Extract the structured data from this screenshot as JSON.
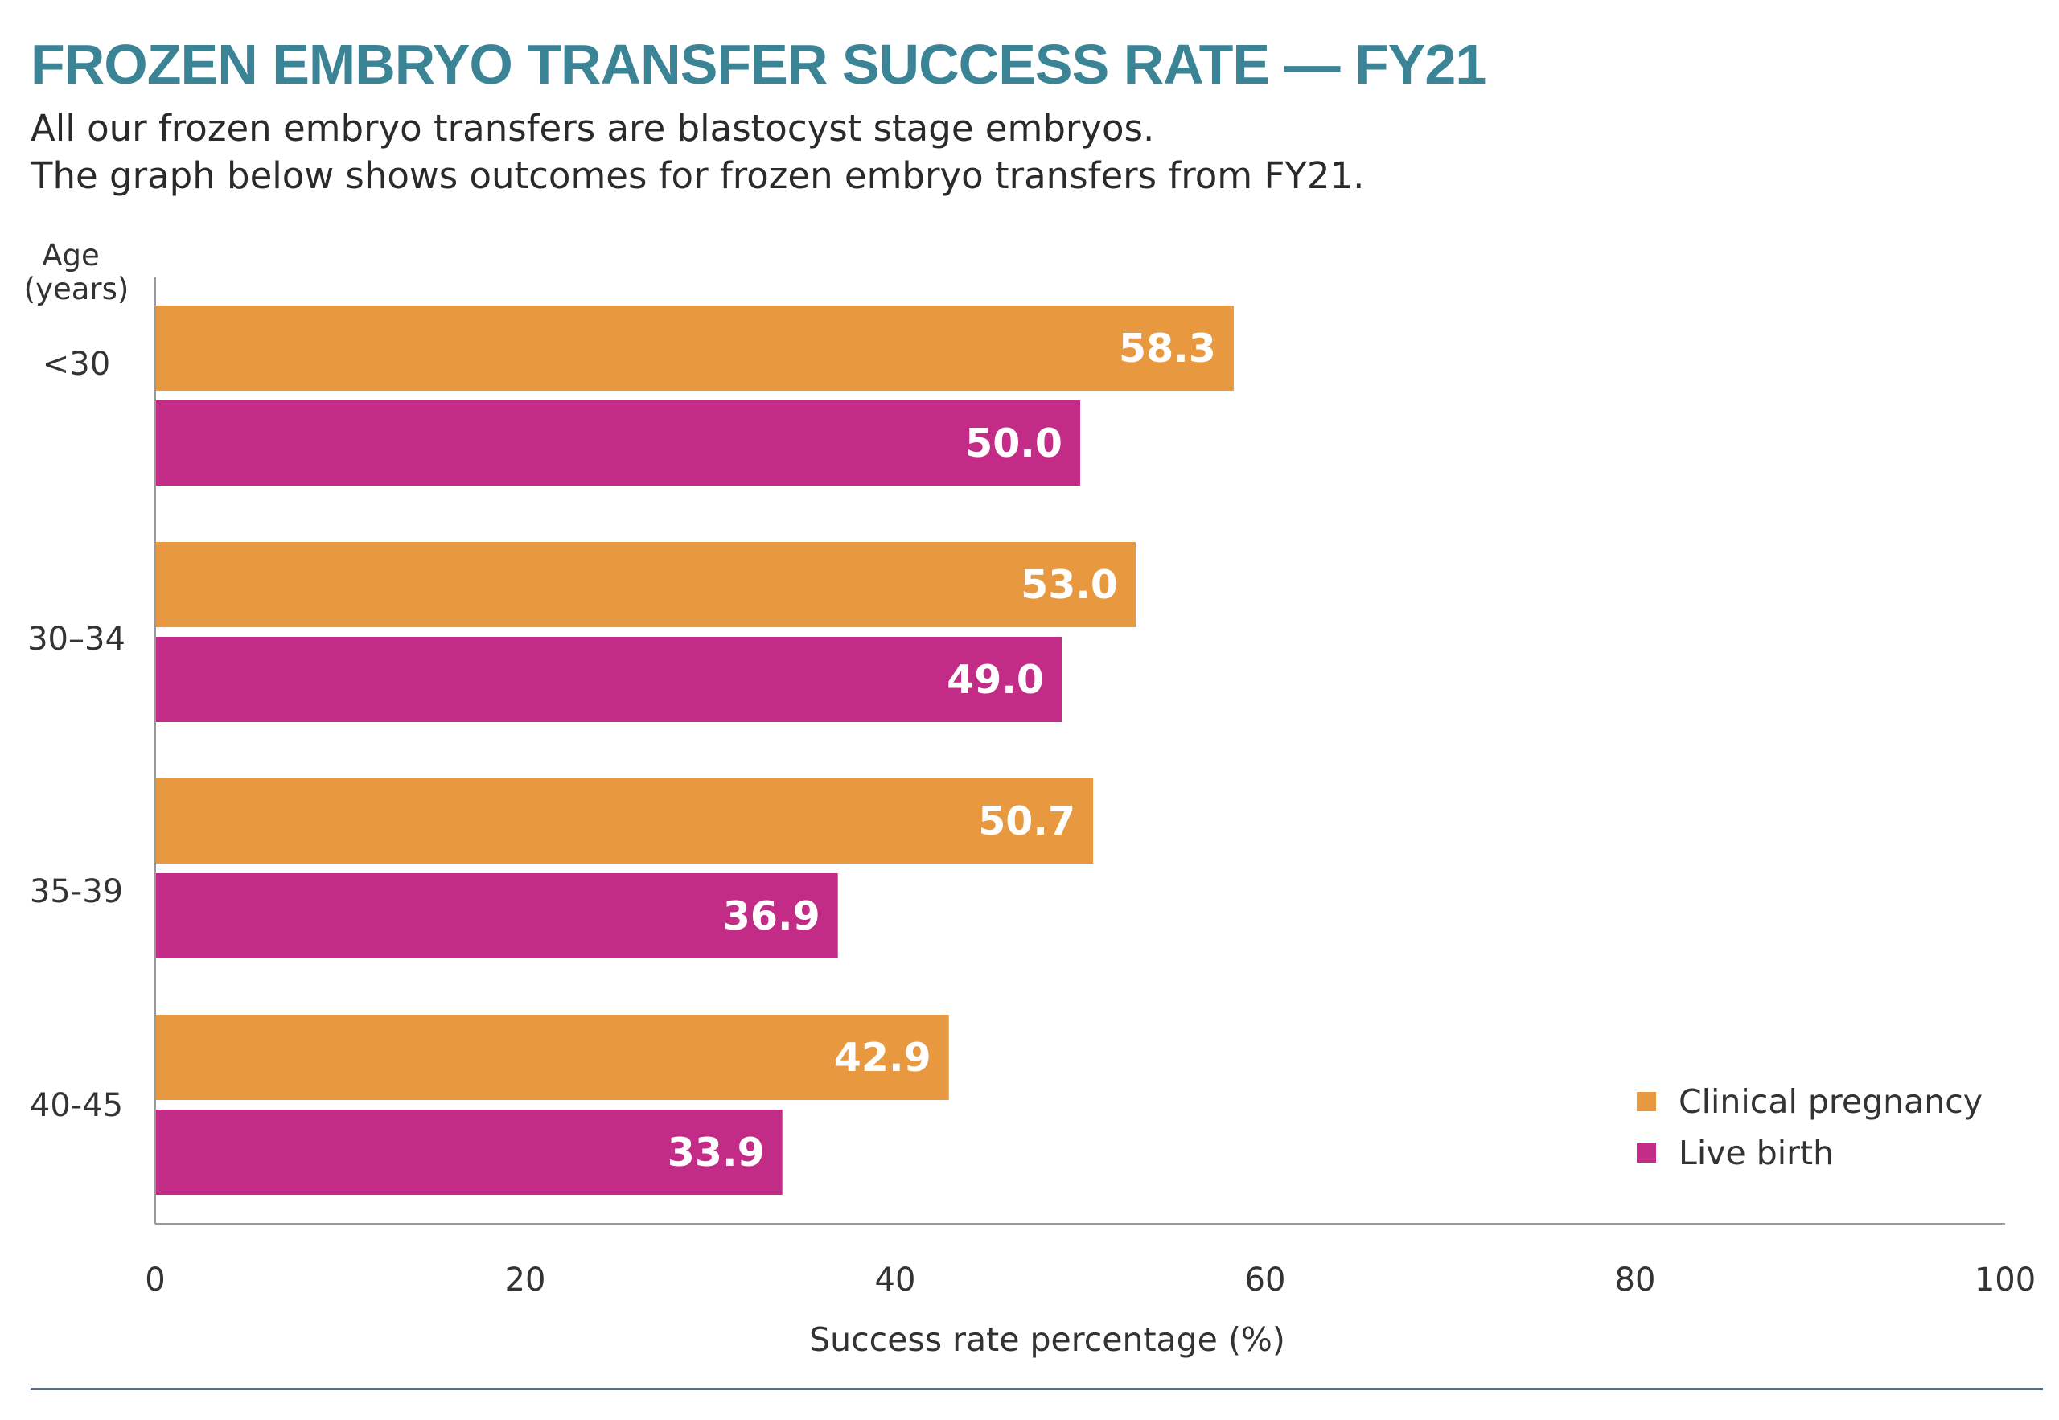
{
  "header": {
    "title": "FROZEN EMBRYO TRANSFER SUCCESS RATE — FY21",
    "subtitle_line1": "All our frozen embryo transfers are blastocyst stage embryos.",
    "subtitle_line2": "The graph below shows outcomes for frozen embryo transfers from FY21."
  },
  "colors": {
    "title": "#3b8496",
    "clinical_pregnancy": "#e8983f",
    "live_birth": "#c22c87",
    "axis": "#999999",
    "footer_rule": "#5d6b7f"
  },
  "chart_data": {
    "type": "bar",
    "orientation": "horizontal",
    "title": "FROZEN EMBRYO TRANSFER SUCCESS RATE — FY21",
    "ylabel_line1": "Age",
    "ylabel_line2": "(years)",
    "xlabel": "Success rate percentage (%)",
    "categories": [
      "<30",
      "30–34",
      "35-39",
      "40-45"
    ],
    "series": [
      {
        "name": "Clinical pregnancy",
        "values": [
          58.3,
          53.0,
          50.7,
          42.9
        ]
      },
      {
        "name": "Live birth",
        "values": [
          50.0,
          49.0,
          36.9,
          33.9
        ]
      }
    ],
    "xlim": [
      0,
      100
    ],
    "xticks": [
      0,
      20,
      40,
      60,
      80,
      100
    ],
    "grid": false,
    "legend_position": "bottom-right",
    "data_labels": true
  }
}
